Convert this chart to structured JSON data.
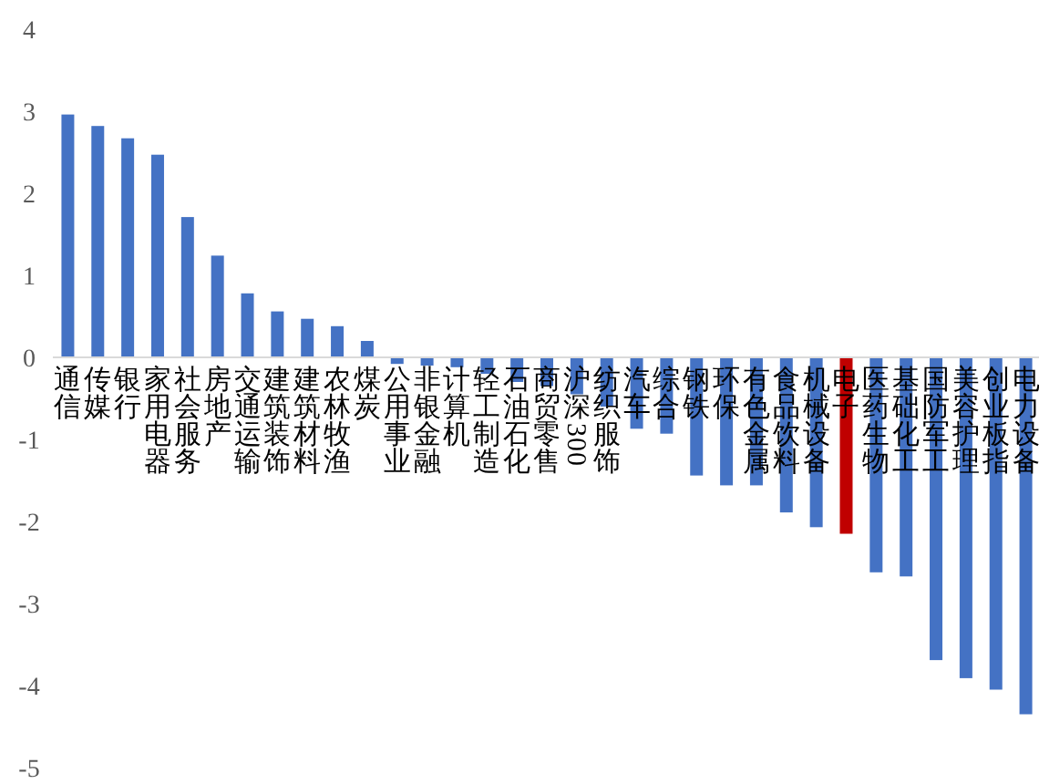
{
  "chart_data": {
    "type": "bar",
    "categories": [
      "通信",
      "传媒",
      "银行",
      "家用电器",
      "社会服务",
      "房地产",
      "交通运输",
      "建筑装饰",
      "建筑材料",
      "农林牧渔",
      "煤炭",
      "公用事业",
      "非银金融",
      "计算机",
      "轻工制造",
      "石油石化",
      "商贸零售",
      "沪深300",
      "纺织服饰",
      "汽车",
      "综合",
      "钢铁",
      "环保",
      "有色金属",
      "食品饮料",
      "机械设备",
      "电子",
      "医药生物",
      "基础化工",
      "国防军工",
      "美容护理",
      "创业板指",
      "电力设备"
    ],
    "values": [
      2.96,
      2.82,
      2.67,
      2.47,
      1.71,
      1.24,
      0.78,
      0.56,
      0.47,
      0.38,
      0.2,
      -0.08,
      -0.1,
      -0.12,
      -0.2,
      -0.3,
      -0.35,
      -0.45,
      -0.6,
      -0.87,
      -0.93,
      -1.44,
      -1.56,
      -1.56,
      -1.89,
      -2.07,
      -2.15,
      -2.62,
      -2.67,
      -3.69,
      -3.91,
      -4.05,
      -4.35
    ],
    "colors": [
      "#4472c4",
      "#4472c4",
      "#4472c4",
      "#4472c4",
      "#4472c4",
      "#4472c4",
      "#4472c4",
      "#4472c4",
      "#4472c4",
      "#4472c4",
      "#4472c4",
      "#4472c4",
      "#4472c4",
      "#4472c4",
      "#4472c4",
      "#4472c4",
      "#4472c4",
      "#4472c4",
      "#4472c4",
      "#4472c4",
      "#4472c4",
      "#4472c4",
      "#4472c4",
      "#4472c4",
      "#4472c4",
      "#4472c4",
      "#c00000",
      "#4472c4",
      "#4472c4",
      "#4472c4",
      "#4472c4",
      "#4472c4",
      "#4472c4"
    ],
    "ylim": [
      -5,
      4
    ],
    "yticks": [
      -5,
      -4,
      -3,
      -2,
      -1,
      0,
      1,
      2,
      3,
      4
    ],
    "grid": false
  }
}
